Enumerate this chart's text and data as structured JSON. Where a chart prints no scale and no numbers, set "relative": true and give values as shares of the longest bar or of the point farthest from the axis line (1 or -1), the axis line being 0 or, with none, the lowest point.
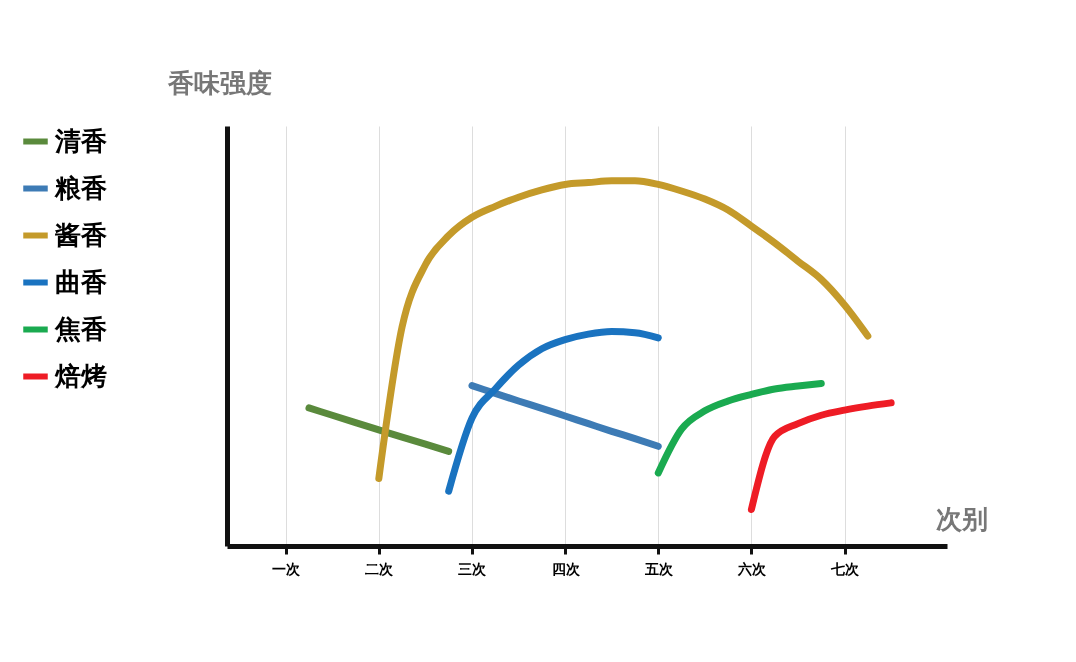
{
  "chart_data": {
    "type": "line",
    "relative": true,
    "xlabel": "次别",
    "ylabel": "香味强度",
    "legend": "left",
    "grid": "x",
    "line_style": "solid",
    "categories": [
      "一次",
      null,
      null,
      null,
      "二次",
      null,
      null,
      null,
      "三次",
      null,
      null,
      null,
      "四次",
      null,
      null,
      null,
      "五次",
      null,
      null,
      null,
      "六次",
      null,
      null,
      null,
      "七次",
      null,
      null
    ],
    "series": [
      {
        "name": "清香",
        "color": "#5a8a3c",
        "values": [
          null,
          0.378,
          0.358,
          0.338,
          0.318,
          0.298,
          0.279,
          0.259,
          null,
          null,
          null,
          null,
          null,
          null,
          null,
          null,
          null,
          null,
          null,
          null,
          null,
          null,
          null,
          null,
          null,
          null,
          null
        ]
      },
      {
        "name": "粮香",
        "color": "#3d7bb5",
        "values": [
          null,
          null,
          null,
          null,
          null,
          null,
          null,
          null,
          0.439,
          0.418,
          0.397,
          0.377,
          0.356,
          0.335,
          0.314,
          0.294,
          0.273,
          null,
          null,
          null,
          null,
          null,
          null,
          null,
          null,
          null,
          null
        ]
      },
      {
        "name": "酱香",
        "color": "#c49a2a",
        "values": [
          null,
          null,
          null,
          null,
          0.185,
          0.6,
          0.77,
          0.85,
          0.9,
          0.93,
          0.955,
          0.975,
          0.99,
          0.995,
          1,
          1,
          0.99,
          0.972,
          0.95,
          0.92,
          0.876,
          0.83,
          0.78,
          0.73,
          0.66,
          0.575,
          null
        ]
      },
      {
        "name": "曲香",
        "color": "#1a73c0",
        "values": [
          null,
          null,
          null,
          null,
          null,
          null,
          null,
          0.15,
          0.35,
          0.43,
          0.495,
          0.54,
          0.565,
          0.58,
          0.587,
          0.584,
          0.57,
          null,
          null,
          null,
          null,
          null,
          null,
          null,
          null,
          null,
          null
        ]
      },
      {
        "name": "焦香",
        "color": "#1aaa50",
        "values": [
          null,
          null,
          null,
          null,
          null,
          null,
          null,
          null,
          null,
          null,
          null,
          null,
          null,
          null,
          null,
          null,
          0.2,
          0.32,
          0.37,
          0.397,
          0.415,
          0.43,
          0.438,
          0.445,
          null,
          null,
          null
        ]
      },
      {
        "name": "焙烤",
        "color": "#ee1c25",
        "values": [
          null,
          null,
          null,
          null,
          null,
          null,
          null,
          null,
          null,
          null,
          null,
          null,
          null,
          null,
          null,
          null,
          null,
          null,
          null,
          null,
          0.1,
          0.3,
          0.335,
          0.358,
          0.372,
          0.383,
          0.392
        ]
      }
    ]
  }
}
